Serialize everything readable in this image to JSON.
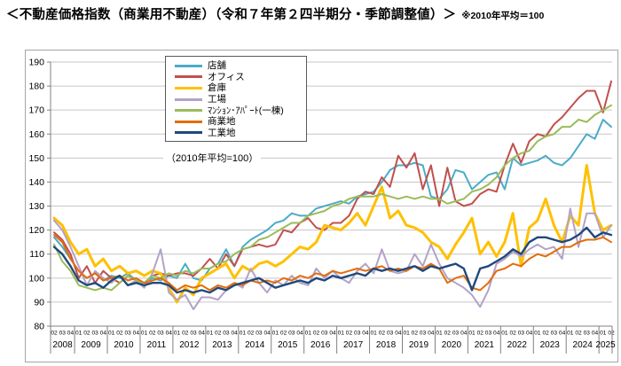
{
  "page": {
    "title": "＜不動産価格指数（商業用不動産）（令和７年第２四半期分・季節調整値）＞",
    "title_note": "※2010年平均＝100"
  },
  "chart_data": {
    "type": "line",
    "annotation": "（2010年平均=100）",
    "ylim": [
      80,
      190
    ],
    "y_ticks": [
      190,
      180,
      170,
      160,
      150,
      140,
      130,
      120,
      110,
      100,
      90,
      80
    ],
    "grid": true,
    "legend_position": "inset-top-left",
    "x_axis": {
      "quarter_labels": [
        "02",
        "03",
        "04",
        "01",
        "02",
        "03",
        "04",
        "01",
        "02",
        "03",
        "04",
        "01",
        "02",
        "03",
        "04",
        "01",
        "02",
        "03",
        "04",
        "01",
        "02",
        "03",
        "04",
        "01",
        "02",
        "03",
        "04",
        "01",
        "02",
        "03",
        "04",
        "01",
        "02",
        "03",
        "04",
        "01",
        "02",
        "03",
        "04",
        "01",
        "02",
        "03",
        "04",
        "01",
        "02",
        "03",
        "04",
        "01",
        "02",
        "03",
        "04",
        "01",
        "02",
        "03",
        "04",
        "01",
        "02",
        "03",
        "04",
        "01",
        "02",
        "03",
        "04",
        "01",
        "02",
        "03",
        "04",
        "01",
        "02"
      ],
      "years": [
        {
          "label": "2008",
          "quarters": 3
        },
        {
          "label": "2009",
          "quarters": 4
        },
        {
          "label": "2010",
          "quarters": 4
        },
        {
          "label": "2011",
          "quarters": 4
        },
        {
          "label": "2012",
          "quarters": 4
        },
        {
          "label": "2013",
          "quarters": 4
        },
        {
          "label": "2014",
          "quarters": 4
        },
        {
          "label": "2015",
          "quarters": 4
        },
        {
          "label": "2016",
          "quarters": 4
        },
        {
          "label": "2017",
          "quarters": 4
        },
        {
          "label": "2018",
          "quarters": 4
        },
        {
          "label": "2019",
          "quarters": 4
        },
        {
          "label": "2020",
          "quarters": 4
        },
        {
          "label": "2021",
          "quarters": 4
        },
        {
          "label": "2022",
          "quarters": 4
        },
        {
          "label": "2023",
          "quarters": 4
        },
        {
          "label": "2024",
          "quarters": 4
        },
        {
          "label": "2025",
          "quarters": 2
        }
      ]
    },
    "series": [
      {
        "key": "tenpo",
        "name": "店舗",
        "color": "#4BACC6",
        "width": 2,
        "values": [
          117,
          113,
          108,
          103,
          100,
          102,
          99,
          101,
          100,
          102,
          99,
          98,
          100,
          99,
          101,
          100,
          106,
          100,
          99,
          104,
          106,
          112,
          105,
          113,
          116,
          118,
          120,
          123,
          124,
          127,
          126,
          126,
          129,
          130,
          131,
          132,
          131,
          134,
          135,
          136,
          140,
          145,
          147,
          147,
          148,
          147,
          134,
          133,
          137,
          145,
          144,
          137,
          140,
          143,
          144,
          137,
          150,
          147,
          148,
          149,
          151,
          148,
          147,
          150,
          155,
          160,
          158,
          166,
          163
        ]
      },
      {
        "key": "office",
        "name": "オフィス",
        "color": "#C0504D",
        "width": 2,
        "values": [
          119,
          116,
          110,
          100,
          105,
          98,
          103,
          100,
          98,
          101,
          99,
          98,
          101,
          102,
          101,
          102,
          102,
          101,
          104,
          108,
          104,
          110,
          105,
          112,
          113,
          114,
          113,
          114,
          120,
          119,
          123,
          125,
          121,
          120,
          123,
          123,
          126,
          133,
          136,
          135,
          142,
          138,
          151,
          146,
          152,
          137,
          147,
          130,
          146,
          132,
          130,
          131,
          135,
          137,
          136,
          147,
          156,
          148,
          157,
          160,
          159,
          164,
          167,
          171,
          175,
          178,
          178,
          169,
          182
        ]
      },
      {
        "key": "souko",
        "name": "倉庫",
        "color": "#FFC000",
        "width": 3,
        "values": [
          125,
          122,
          115,
          110,
          112,
          105,
          108,
          103,
          105,
          102,
          103,
          101,
          103,
          102,
          96,
          90,
          96,
          93,
          100,
          102,
          104,
          106,
          100,
          105,
          103,
          106,
          107,
          105,
          107,
          110,
          113,
          112,
          115,
          122,
          121,
          120,
          123,
          127,
          122,
          130,
          138,
          125,
          128,
          122,
          121,
          119,
          115,
          113,
          108,
          114,
          119,
          125,
          110,
          115,
          109,
          115,
          127,
          105,
          121,
          124,
          133,
          122,
          115,
          126,
          122,
          147,
          127,
          120,
          122
        ]
      },
      {
        "key": "kojo",
        "name": "工場",
        "color": "#B3A2C7",
        "width": 2,
        "values": [
          124,
          120,
          113,
          105,
          97,
          103,
          100,
          98,
          101,
          97,
          99,
          96,
          102,
          112,
          94,
          91,
          93,
          87,
          92,
          92,
          91,
          95,
          98,
          96,
          104,
          98,
          94,
          99,
          97,
          101,
          98,
          97,
          104,
          100,
          103,
          100,
          98,
          103,
          106,
          102,
          112,
          103,
          102,
          103,
          110,
          105,
          114,
          106,
          100,
          98,
          96,
          93,
          88,
          95,
          106,
          108,
          111,
          109,
          112,
          114,
          112,
          113,
          108,
          129,
          113,
          127,
          127,
          117,
          122
        ]
      },
      {
        "key": "mansion",
        "name": "ﾏﾝｼｮﾝ･ｱﾊﾟｰﾄ(一棟)",
        "color": "#9BBB59",
        "width": 2,
        "values": [
          114,
          107,
          103,
          97,
          96,
          95,
          96,
          95,
          98,
          101,
          99,
          98,
          101,
          100,
          102,
          101,
          103,
          102,
          104,
          104,
          106,
          107,
          110,
          112,
          113,
          116,
          117,
          119,
          121,
          123,
          123,
          126,
          127,
          128,
          130,
          131,
          133,
          134,
          134,
          134,
          135,
          134,
          133,
          134,
          133,
          134,
          133,
          133,
          131,
          132,
          133,
          136,
          137,
          139,
          142,
          147,
          150,
          152,
          153,
          157,
          159,
          160,
          163,
          163,
          166,
          165,
          168,
          170,
          172
        ]
      },
      {
        "key": "shogyochi",
        "name": "商業地",
        "color": "#E36C0A",
        "width": 2,
        "values": [
          118,
          115,
          108,
          103,
          100,
          102,
          99,
          100,
          101,
          99,
          100,
          98,
          99,
          100,
          98,
          95,
          97,
          96,
          97,
          95,
          97,
          96,
          98,
          97,
          99,
          98,
          99,
          98,
          100,
          99,
          101,
          100,
          102,
          101,
          103,
          102,
          103,
          104,
          103,
          104,
          105,
          103,
          104,
          103,
          105,
          104,
          106,
          104,
          98,
          100,
          101,
          96,
          95,
          98,
          103,
          104,
          106,
          105,
          108,
          110,
          109,
          111,
          113,
          113,
          115,
          116,
          116,
          117,
          115
        ]
      },
      {
        "key": "kogyochi",
        "name": "工業地",
        "color": "#1F497D",
        "width": 2.4,
        "values": [
          113,
          110,
          105,
          99,
          97,
          98,
          96,
          99,
          101,
          97,
          98,
          97,
          98,
          98,
          97,
          94,
          95,
          94,
          95,
          94,
          96,
          95,
          97,
          98,
          99,
          100,
          98,
          96,
          97,
          98,
          99,
          98,
          100,
          99,
          101,
          100,
          101,
          102,
          101,
          104,
          103,
          104,
          103,
          104,
          105,
          103,
          105,
          104,
          105,
          106,
          104,
          95,
          104,
          105,
          107,
          109,
          112,
          110,
          115,
          117,
          117,
          116,
          115,
          116,
          118,
          121,
          117,
          119,
          118
        ]
      }
    ]
  }
}
